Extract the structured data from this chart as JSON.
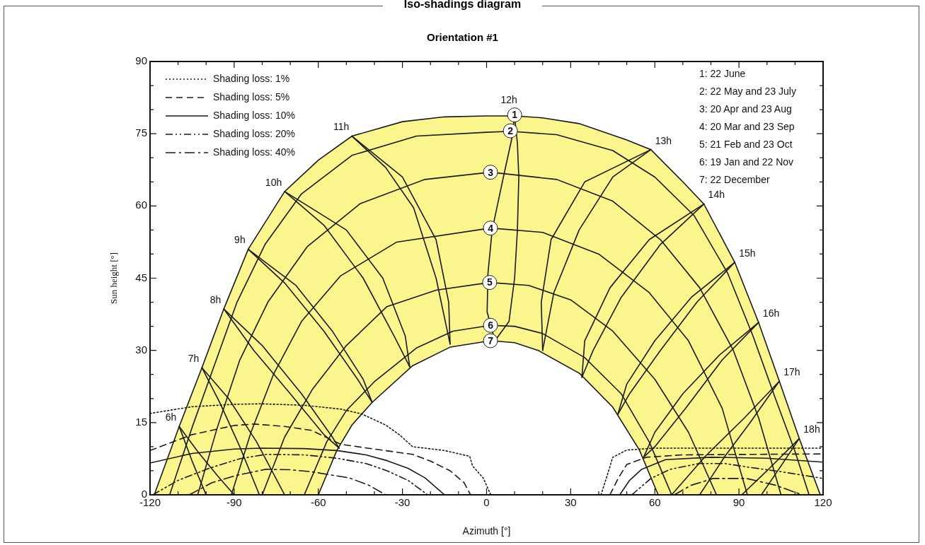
{
  "chart_data": {
    "type": "line",
    "title": "Iso-shadings diagram",
    "subtitle": "Orientation #1",
    "xlabel": "Azimuth [°]",
    "ylabel": "Sun height [°]",
    "xlim": [
      -120,
      120
    ],
    "ylim": [
      0,
      90
    ],
    "xticks": [
      -120,
      {
        "value": -110,
        "label": null
      },
      {
        "value": -100,
        "label": null
      },
      -90,
      {
        "value": -80,
        "label": null
      },
      {
        "value": -70,
        "label": null
      },
      -60,
      {
        "value": -50,
        "label": null
      },
      {
        "value": -40,
        "label": null
      },
      -30,
      {
        "value": -20,
        "label": null
      },
      {
        "value": -10,
        "label": null
      },
      0,
      {
        "value": 10,
        "label": null
      },
      {
        "value": 20,
        "label": null
      },
      30,
      {
        "value": 40,
        "label": null
      },
      {
        "value": 50,
        "label": null
      },
      60,
      {
        "value": 70,
        "label": null
      },
      {
        "value": 80,
        "label": null
      },
      90,
      {
        "value": 100,
        "label": null
      },
      {
        "value": 110,
        "label": null
      },
      120
    ],
    "yticks": [
      0,
      {
        "value": 5,
        "label": null
      },
      {
        "value": 10,
        "label": null
      },
      15,
      {
        "value": 20,
        "label": null
      },
      {
        "value": 25,
        "label": null
      },
      30,
      {
        "value": 35,
        "label": null
      },
      {
        "value": 40,
        "label": null
      },
      45,
      {
        "value": 50,
        "label": null
      },
      {
        "value": 55,
        "label": null
      },
      60,
      {
        "value": 65,
        "label": null
      },
      {
        "value": 70,
        "label": null
      },
      75,
      {
        "value": 80,
        "label": null
      },
      {
        "value": 85,
        "label": null
      },
      90
    ],
    "grid": false,
    "legend": "top left",
    "marker": "none",
    "line_style": "solid",
    "annotations": [
      "1: 22 June",
      "2: 22 May and 23 July",
      "3: 20 Apr and 23 Aug",
      "4: 20 Mar and 23 Sep",
      "5: 21 Feb and 23 Oct",
      "6: 19 Jan and 22 Nov",
      "7: 22 December",
      {
        "text": "6h",
        "x": -109.6,
        "y": 14.2
      },
      {
        "text": "7h",
        "x": -101.5,
        "y": 26.4
      },
      {
        "text": "8h",
        "x": -93.7,
        "y": 38.6
      },
      {
        "text": "9h",
        "x": -85,
        "y": 51
      },
      {
        "text": "10h",
        "x": -72,
        "y": 63
      },
      {
        "text": "11h",
        "x": -48,
        "y": 74.5
      },
      {
        "text": "12h",
        "x": 10,
        "y": 78.7
      },
      {
        "text": "13h",
        "x": 58.6,
        "y": 71.7
      },
      {
        "text": "14h",
        "x": 77.5,
        "y": 60.4
      },
      {
        "text": "15h",
        "x": 88.5,
        "y": 48.3
      },
      {
        "text": "16h",
        "x": 97,
        "y": 35.8
      },
      {
        "text": "17h",
        "x": 104.4,
        "y": 23.6
      },
      {
        "text": "18h",
        "x": 111.5,
        "y": 11.7
      },
      {
        "text": "1",
        "x": 10,
        "y": 78.9
      },
      {
        "text": "2",
        "x": 8.5,
        "y": 75.6
      },
      {
        "text": "3",
        "x": 1.4,
        "y": 67
      },
      {
        "text": "4",
        "x": 1.4,
        "y": 55.4
      },
      {
        "text": "5",
        "x": 1.1,
        "y": 44.1
      },
      {
        "text": "6",
        "x": 1.4,
        "y": 35.2
      },
      {
        "text": "7",
        "x": 1.4,
        "y": 32
      }
    ],
    "series": [
      {
        "type": "scatter",
        "marker": "circle",
        "color": "#ffffff",
        "x": [
          10,
          8.5,
          1.4,
          1.4,
          1.1,
          1.4,
          1.4
        ],
        "values": [
          78.9,
          75.6,
          67,
          55.4,
          44.1,
          35.2,
          32
        ]
      },
      {
        "color": "#1a1a1a",
        "x": [
          -113,
          -105,
          -97,
          -89,
          -79,
          -66,
          -48,
          -25,
          0,
          8.5,
          25,
          45,
          60,
          74,
          86,
          95,
          103,
          110,
          115
        ],
        "values": [
          0,
          14,
          27,
          40,
          52,
          62.5,
          70.5,
          74.5,
          75.3,
          75.5,
          74.8,
          71.5,
          66,
          58,
          46,
          33,
          20,
          9,
          0
        ]
      },
      {
        "color": "#1a1a1a",
        "x": [
          -103,
          -96,
          -88,
          -78,
          -64,
          -45,
          -22,
          1.4,
          25,
          45,
          62,
          76,
          88,
          97,
          105
        ],
        "values": [
          0,
          14,
          28,
          40,
          51.5,
          60.5,
          65.5,
          67,
          65.5,
          61,
          53,
          43,
          30,
          16,
          0
        ]
      },
      {
        "color": "#1a1a1a",
        "x": [
          -91,
          -84,
          -76,
          -66,
          -52,
          -32,
          1.4,
          20,
          40,
          58,
          72,
          84,
          93
        ],
        "values": [
          0,
          13,
          25,
          36,
          45.5,
          52.5,
          55.4,
          54.5,
          50,
          42,
          32,
          18,
          0
        ]
      },
      {
        "color": "#1a1a1a",
        "x": [
          -80,
          -72,
          -62,
          -50,
          -35.5,
          -18,
          1.1,
          15,
          30,
          45,
          60,
          72,
          82
        ],
        "values": [
          0,
          12,
          22,
          31,
          39.1,
          42.5,
          44.1,
          43.5,
          40.5,
          34,
          24,
          13,
          0
        ]
      },
      {
        "color": "#1a1a1a",
        "x": [
          -65,
          -57,
          -50,
          -40,
          -25,
          -12,
          1.4,
          10,
          20,
          35,
          48,
          58,
          66
        ],
        "values": [
          0,
          11,
          17.5,
          23.5,
          30.5,
          34,
          35.2,
          35,
          33.5,
          28.5,
          21,
          11,
          0
        ]
      },
      {
        "color": "#1a1a1a",
        "x": [
          -109.6,
          -105,
          -100
        ],
        "values": [
          14.2,
          7,
          0
        ]
      },
      {
        "color": "#1a1a1a",
        "x": [
          -109.6,
          -103,
          -96,
          -90
        ],
        "values": [
          14.2,
          9,
          4,
          0
        ]
      },
      {
        "color": "#1a1a1a",
        "x": [
          -101.5,
          -95,
          -88,
          -81
        ],
        "values": [
          26.4,
          19,
          10,
          0
        ]
      },
      {
        "color": "#1a1a1a",
        "x": [
          -101.5,
          -92,
          -82,
          -72
        ],
        "values": [
          26.4,
          20,
          11,
          0
        ]
      },
      {
        "color": "#1a1a1a",
        "x": [
          -93.7,
          -80,
          -66,
          -55,
          -52.6
        ],
        "values": [
          38.6,
          31,
          21,
          12,
          9.7
        ]
      },
      {
        "color": "#1a1a1a",
        "x": [
          -93.7,
          -83,
          -70,
          -58,
          -52.6
        ],
        "values": [
          38.6,
          30,
          21,
          12.5,
          9.7
        ]
      },
      {
        "color": "#1a1a1a",
        "x": [
          -85,
          -72,
          -58,
          -46,
          -40.8
        ],
        "values": [
          51,
          44,
          34,
          24,
          19.2
        ]
      },
      {
        "color": "#1a1a1a",
        "x": [
          -85,
          -68,
          -55,
          -44,
          -40.8
        ],
        "values": [
          51,
          43.5,
          34,
          24,
          19.2
        ]
      },
      {
        "color": "#1a1a1a",
        "x": [
          -72,
          -58,
          -44,
          -33,
          -27.4
        ],
        "values": [
          63,
          56,
          45,
          33,
          26.6
        ]
      },
      {
        "color": "#1a1a1a",
        "x": [
          -72,
          -50,
          -37,
          -29,
          -27.4
        ],
        "values": [
          63,
          55,
          45,
          33,
          26.6
        ]
      },
      {
        "color": "#1a1a1a",
        "x": [
          -48,
          -36,
          -26,
          -18,
          -13
        ],
        "values": [
          74.5,
          68,
          59.6,
          45,
          31.3
        ]
      },
      {
        "color": "#1a1a1a",
        "x": [
          -48,
          -30,
          -18,
          -13.5,
          -13
        ],
        "values": [
          74.5,
          66,
          53,
          40,
          31.3
        ]
      },
      {
        "color": "#1a1a1a",
        "x": [
          10,
          9,
          6,
          2,
          0.5,
          0.2,
          3
        ],
        "values": [
          78.7,
          74,
          66,
          55,
          46,
          38,
          32
        ]
      },
      {
        "color": "#1a1a1a",
        "x": [
          10,
          11,
          11.5,
          11,
          10,
          8,
          3
        ],
        "values": [
          78.7,
          73,
          66,
          55,
          45,
          36,
          32
        ]
      },
      {
        "color": "#1a1a1a",
        "x": [
          58.6,
          45,
          33,
          24,
          20
        ],
        "values": [
          71.7,
          66,
          55,
          42,
          30
        ]
      },
      {
        "color": "#1a1a1a",
        "x": [
          58.6,
          35,
          23,
          19.5,
          20
        ],
        "values": [
          71.7,
          65,
          53,
          40,
          30
        ]
      },
      {
        "color": "#1a1a1a",
        "x": [
          77.5,
          62,
          48,
          38,
          34
        ],
        "values": [
          60.4,
          52,
          41,
          30,
          24.4
        ]
      },
      {
        "color": "#1a1a1a",
        "x": [
          77.5,
          58,
          44,
          35,
          34
        ],
        "values": [
          60.4,
          53,
          43,
          32,
          24.4
        ]
      },
      {
        "color": "#1a1a1a",
        "x": [
          88.5,
          75,
          62,
          51,
          46.8
        ],
        "values": [
          48.3,
          40,
          30,
          21,
          16.7
        ]
      },
      {
        "color": "#1a1a1a",
        "x": [
          88.5,
          73,
          60,
          50,
          46.8
        ],
        "values": [
          48.3,
          41,
          32,
          23,
          16.7
        ]
      },
      {
        "color": "#1a1a1a",
        "x": [
          97,
          84,
          71,
          60,
          56
        ],
        "values": [
          35.8,
          28,
          18,
          10,
          7.8
        ]
      },
      {
        "color": "#1a1a1a",
        "x": [
          97,
          83,
          70,
          60,
          56
        ],
        "values": [
          35.8,
          29,
          21,
          13,
          7.8
        ]
      },
      {
        "color": "#1a1a1a",
        "x": [
          104.4,
          92,
          78,
          66
        ],
        "values": [
          23.6,
          16,
          8,
          0
        ]
      },
      {
        "color": "#1a1a1a",
        "x": [
          104.4,
          94,
          85,
          76
        ],
        "values": [
          23.6,
          15,
          8,
          0
        ]
      },
      {
        "color": "#1a1a1a",
        "x": [
          111.5,
          100,
          91
        ],
        "values": [
          11.7,
          5,
          0
        ]
      },
      {
        "color": "#1a1a1a",
        "x": [
          111.5,
          105,
          98
        ],
        "values": [
          11.7,
          6,
          0
        ]
      },
      {
        "name": "Shading loss: 1%",
        "color": "#1a1a1a",
        "line_style": "dotted",
        "x": [
          -120,
          -105,
          -90,
          -80.5,
          -65,
          -52,
          -44.5,
          -36,
          -30.9,
          -26.4,
          -15,
          -6,
          -5,
          -1.2,
          1.5,
          20,
          40.8,
          43,
          45,
          50,
          60,
          120
        ],
        "values": [
          16.9,
          18.3,
          18.8,
          18.9,
          18.6,
          17.8,
          16.8,
          14.5,
          12.4,
          10,
          9.2,
          8,
          6,
          3.5,
          0,
          null,
          0,
          4,
          7.8,
          9.3,
          9.7,
          9.7
        ]
      },
      {
        "name": "Shading loss: 5%",
        "color": "#1a1a1a",
        "line_style": "dashed",
        "x": [
          -120,
          -105,
          -90,
          -83,
          -72,
          -62.5,
          -52,
          -40,
          -26.4,
          -20,
          -13,
          -8,
          -5.7,
          20,
          44,
          47,
          50,
          57,
          70,
          120
        ],
        "values": [
          9.2,
          12.5,
          14.4,
          14.7,
          14.2,
          13.4,
          10.5,
          9.5,
          8.4,
          7,
          5,
          2.5,
          0,
          null,
          0,
          3.5,
          6.3,
          7.8,
          8.3,
          8.5
        ]
      },
      {
        "name": "Shading loss: 10%",
        "color": "#1a1a1a",
        "line_style": "solid",
        "x": [
          -120,
          -105,
          -90,
          -80.5,
          -65,
          -53.4,
          -43,
          -35.5,
          -28,
          -21.9,
          -15,
          20,
          47.5,
          51,
          55.3,
          63.8,
          80,
          100,
          120
        ],
        "values": [
          6.6,
          8.6,
          9.5,
          9.7,
          9.6,
          9.2,
          8.3,
          7.1,
          5.5,
          3.5,
          0,
          null,
          0,
          3,
          5.3,
          7.3,
          7.8,
          7.6,
          6.8
        ]
      },
      {
        "name": "Shading loss: 20%",
        "color": "#1a1a1a",
        "line_style": "dashdotdot",
        "x": [
          -119,
          -110,
          -98.5,
          -88,
          -78.7,
          -65,
          -53.4,
          -43,
          -35.5,
          -28,
          -21,
          20,
          51.8,
          58.6,
          65.5,
          75.8,
          85,
          92.7,
          105,
          120
        ],
        "values": [
          0,
          3,
          5.6,
          7.5,
          8.4,
          8.3,
          7.6,
          6.5,
          5,
          3,
          0,
          null,
          0,
          3.4,
          5.3,
          6.5,
          6.5,
          5.8,
          4.8,
          3.4
        ]
      },
      {
        "name": "Shading loss: 40%",
        "color": "#1a1a1a",
        "line_style": "dashdot",
        "x": [
          -106,
          -98,
          -89.5,
          -78.7,
          -70,
          -62.5,
          -48.9,
          -42,
          -36,
          20,
          67,
          73,
          80.9,
          92.7,
          103,
          112.5
        ],
        "values": [
          0,
          2.5,
          4,
          5.3,
          5.2,
          4.8,
          3.5,
          2,
          0,
          null,
          0,
          2,
          3.4,
          3.4,
          2,
          0
        ]
      },
      {
        "type": "area",
        "color": "#ffffff",
        "x": [
          -60,
          -53.4,
          -48,
          -40.8,
          -26.4,
          -12.9,
          1.4,
          10,
          18.7,
          33.2,
          45,
          54.5,
          61.2
        ],
        "values": [
          0,
          9.2,
          14.5,
          19.2,
          26.8,
          30.7,
          32,
          31.6,
          29.9,
          25.2,
          18.2,
          9.3,
          0
        ]
      },
      {
        "type": "area",
        "color": "#faf58c",
        "x": [
          -118.5,
          -109.6,
          -101.5,
          -93.7,
          -85,
          -72,
          -60,
          -48,
          -30,
          -15,
          0,
          10,
          20,
          33,
          50,
          58.6,
          70,
          77.5,
          88.5,
          97,
          104.4,
          111.5,
          119
        ],
        "values": [
          0,
          14.2,
          26.4,
          38.6,
          51,
          63,
          69.5,
          74.5,
          77.5,
          78.5,
          78.7,
          78.7,
          78.3,
          77.1,
          73.7,
          71.7,
          65,
          60.4,
          48.3,
          35.8,
          23.6,
          11.7,
          0
        ]
      }
    ]
  }
}
